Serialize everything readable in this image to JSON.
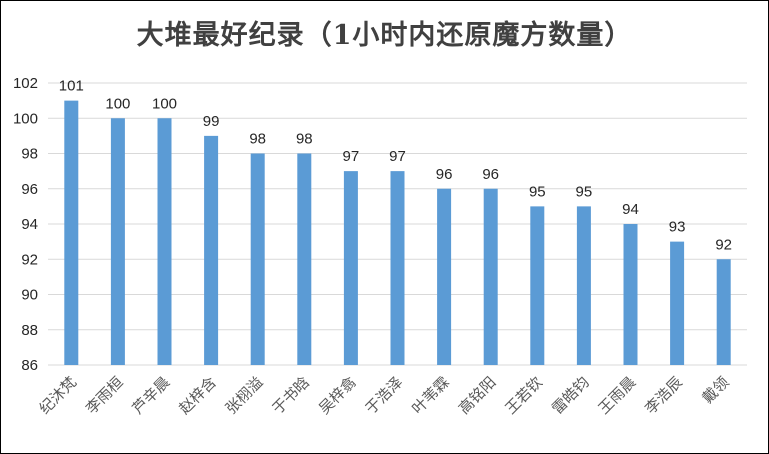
{
  "chart_data": {
    "type": "bar",
    "title": "大堆最好纪录（1小时内还原魔方数量）",
    "xlabel": "",
    "ylabel": "",
    "ylim": [
      86,
      102
    ],
    "yticks": [
      86,
      88,
      90,
      92,
      94,
      96,
      98,
      100,
      102
    ],
    "grid": true,
    "legend": "none",
    "bar_color": "#5B9BD5",
    "grid_color": "#D9D9D9",
    "categories": [
      "纪沐梵",
      "李雨桓",
      "芦辛晨",
      "赵梓含",
      "张栩溢",
      "于书晗",
      "吴梓翕",
      "于浩泽",
      "叶苇霖",
      "高铭阳",
      "王若钦",
      "雷皓钧",
      "王雨晨",
      "李浩辰",
      "戴领"
    ],
    "values": [
      101,
      100,
      100,
      99,
      98,
      98,
      97,
      97,
      96,
      96,
      95,
      95,
      94,
      93,
      92
    ]
  }
}
